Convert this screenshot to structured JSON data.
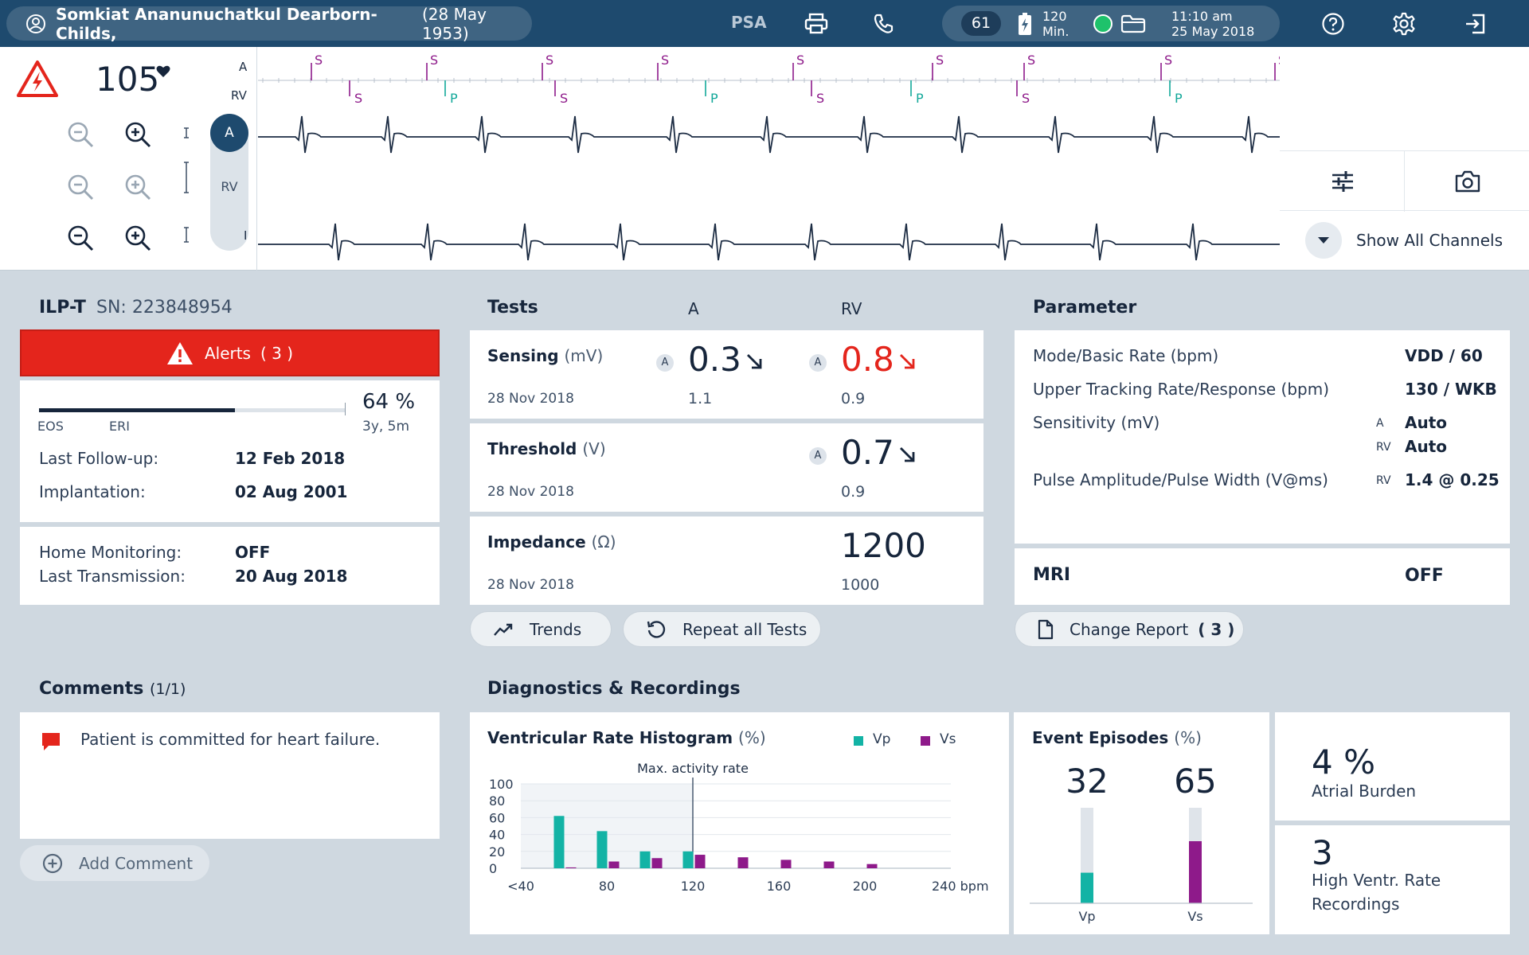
{
  "header": {
    "patient_name": "Somkiat Ananunuchatkul Dearborn-Childs,",
    "patient_dob": "(28 May 1953)",
    "psa": "PSA",
    "battery_level": "61",
    "battery_minutes_value": "120",
    "battery_minutes_unit": "Min.",
    "time": "11:10 am",
    "date": "25 May 2018",
    "icons": [
      "user-icon",
      "printer-icon",
      "phone-icon",
      "battery-icon",
      "status-dot-icon",
      "folder-icon",
      "help-icon",
      "settings-icon",
      "logout-icon"
    ]
  },
  "ecg": {
    "heart_rate": "105",
    "channels": {
      "a": "A",
      "rv": "RV",
      "i": "I"
    },
    "toggle_a": "A",
    "toggle_rv": "RV",
    "marker_labels": {
      "s": "S",
      "p": "P"
    },
    "show_all_channels": "Show All Channels",
    "icons": [
      "alert-triangle-icon",
      "heart-icon",
      "zoom-out-icon",
      "zoom-in-icon",
      "adjust-icon",
      "camera-icon",
      "chevron-down-icon"
    ]
  },
  "device": {
    "model": "ILP-T",
    "serial": "SN: 223848954",
    "alerts_label": "Alerts",
    "alerts_count": "( 3 )",
    "battery_percent_value": 64,
    "battery_percent": "64 %",
    "battery_remaining": "3y, 5m",
    "eos": "EOS",
    "eri": "ERI",
    "last_followup_label": "Last Follow-up:",
    "last_followup_value": "12 Feb 2018",
    "implantation_label": "Implantation:",
    "implantation_value": "02 Aug 2001",
    "home_monitoring_label": "Home Monitoring:",
    "home_monitoring_value": "OFF",
    "last_transmission_label": "Last Transmission:",
    "last_transmission_value": "20 Aug 2018"
  },
  "tests": {
    "title": "Tests",
    "col_a": "A",
    "col_rv": "RV",
    "sensing": {
      "name": "Sensing",
      "unit": "(mV)",
      "date": "28 Nov 2018",
      "a_badge": "A",
      "a_value": "0.3",
      "a_prev": "1.1",
      "rv_badge": "A",
      "rv_value": "0.8",
      "rv_prev": "0.9"
    },
    "threshold": {
      "name": "Threshold",
      "unit": "(V)",
      "date": "28 Nov 2018",
      "rv_badge": "A",
      "rv_value": "0.7",
      "rv_prev": "0.9"
    },
    "impedance": {
      "name": "Impedance",
      "unit": "(Ω)",
      "date": "28 Nov 2018",
      "rv_value": "1200",
      "rv_prev": "1000"
    },
    "trends_button": "Trends",
    "repeat_button": "Repeat all Tests",
    "colors": {
      "alert": "#e4251c"
    }
  },
  "parameter": {
    "title": "Parameter",
    "mode_label": "Mode/Basic Rate (bpm)",
    "mode_value": "VDD / 60",
    "utr_label": "Upper Tracking Rate/Response (bpm)",
    "utr_value": "130 / WKB",
    "sensitivity_label": "Sensitivity (mV)",
    "sens_a_ch": "A",
    "sens_a_value": "Auto",
    "sens_rv_ch": "RV",
    "sens_rv_value": "Auto",
    "pulse_label": "Pulse Amplitude/Pulse Width (V@ms)",
    "pulse_ch": "RV",
    "pulse_value": "1.4 @ 0.25",
    "mri_label": "MRI",
    "mri_value": "OFF",
    "change_report_label": "Change Report",
    "change_report_count": "( 3 )"
  },
  "comments": {
    "title": "Comments",
    "count": "(1/1)",
    "text": "Patient is committed for heart failure.",
    "add_button": "Add Comment"
  },
  "diagnostics": {
    "title": "Diagnostics & Recordings",
    "histogram_title": "Ventricular Rate Histogram",
    "histogram_unit": "(%)",
    "legend_vp": "Vp",
    "legend_vs": "Vs",
    "max_activity_label": "Max. activity rate",
    "event_title": "Event Episodes",
    "event_unit": "(%)",
    "event_vp_value": "32",
    "event_vs_value": "65",
    "event_vp_label": "Vp",
    "event_vs_label": "Vs",
    "atrial_burden_value": "4 %",
    "atrial_burden_label": "Atrial Burden",
    "hvr_value": "3",
    "hvr_label_line1": "High Ventr. Rate",
    "hvr_label_line2": "Recordings",
    "colors": {
      "vp": "#13b3a5",
      "vs": "#8e1a8a"
    }
  },
  "chart_data": [
    {
      "type": "bar",
      "title": "Ventricular Rate Histogram (%)",
      "xlabel": "",
      "ylabel": "",
      "x_tick_labels": [
        "<40",
        "80",
        "120",
        "160",
        "200",
        "240 bpm"
      ],
      "y_ticks": [
        0,
        20,
        40,
        60,
        80,
        100
      ],
      "ylim": [
        0,
        100
      ],
      "xlim": [
        40,
        240
      ],
      "categories": [
        60,
        80,
        100,
        120,
        140,
        160,
        180,
        200
      ],
      "series": [
        {
          "name": "Vp",
          "values": [
            62,
            44,
            20,
            20,
            0,
            0,
            0,
            0
          ]
        },
        {
          "name": "Vs",
          "values": [
            1,
            8,
            12,
            16,
            13,
            10,
            8,
            5
          ]
        }
      ],
      "annotations": [
        {
          "x": 120,
          "text": "Max. activity rate"
        }
      ],
      "legend": "top-right",
      "grid": true
    },
    {
      "type": "bar",
      "title": "Event Episodes (%)",
      "categories": [
        "Vp",
        "Vs"
      ],
      "values": [
        32,
        65
      ],
      "ylim": [
        0,
        100
      ]
    }
  ]
}
